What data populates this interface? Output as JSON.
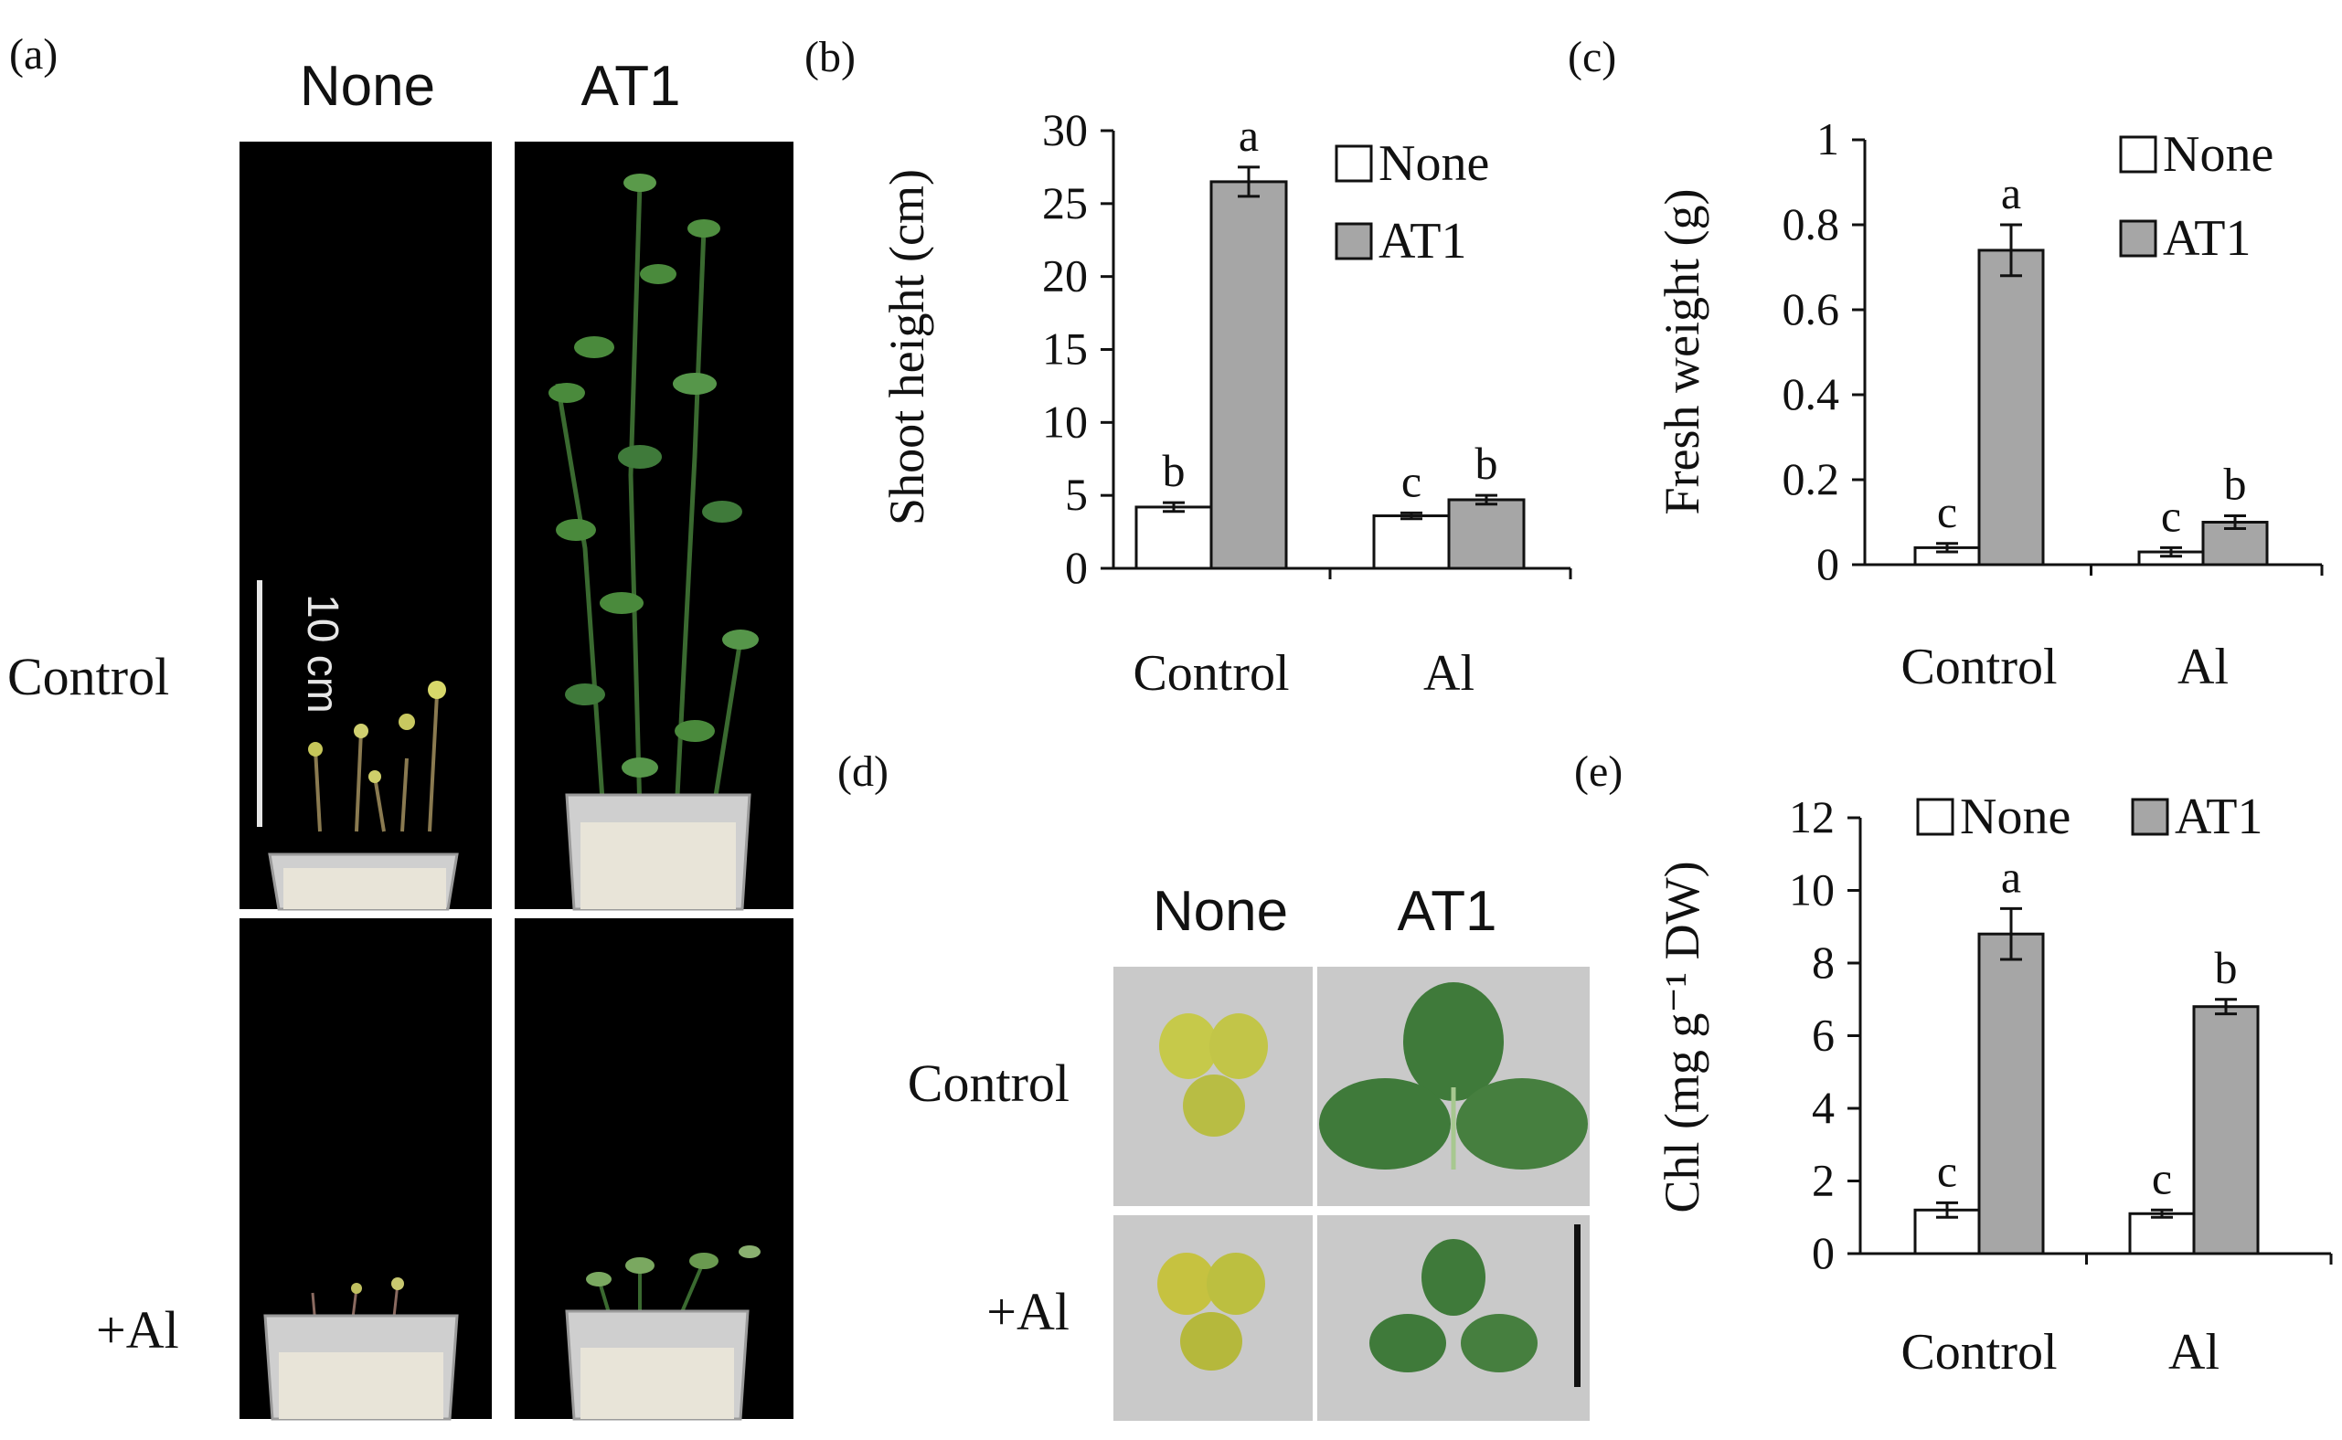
{
  "panel_labels": {
    "a": "(a)",
    "b": "(b)",
    "c": "(c)",
    "d": "(d)",
    "e": "(e)"
  },
  "panel_a": {
    "col_none": "None",
    "col_at1": "AT1",
    "row_control": "Control",
    "row_al": "+Al",
    "scale_label": "10 cm"
  },
  "panel_d": {
    "col_none": "None",
    "col_at1": "AT1",
    "row_control": "Control",
    "row_al": "+Al"
  },
  "colors": {
    "none_fill": "#ffffff",
    "at1_fill": "#a6a6a6",
    "photo_bg": "#000000",
    "leaf_bg": "#c9c9c9",
    "at1_leaf": "#3f7a3a",
    "none_leaf": "#c6c94a"
  },
  "chart_data": [
    {
      "id": "b",
      "type": "bar",
      "categories": [
        "Control",
        "Al"
      ],
      "ylabel": "Shoot height (cm)",
      "ylim": [
        0,
        30
      ],
      "yticks": [
        "0",
        "5",
        "10",
        "15",
        "20",
        "25",
        "30"
      ],
      "legend_position": "top-right",
      "series": [
        {
          "name": "None",
          "values": [
            4.2,
            3.6
          ],
          "errors": [
            0.3,
            0.2
          ],
          "letters": [
            "b",
            "c"
          ]
        },
        {
          "name": "AT1",
          "values": [
            26.5,
            4.7
          ],
          "errors": [
            1.0,
            0.3
          ],
          "letters": [
            "a",
            "b"
          ]
        }
      ]
    },
    {
      "id": "c",
      "type": "bar",
      "categories": [
        "Control",
        "Al"
      ],
      "ylabel": "Fresh weight (g)",
      "ylim": [
        0,
        1
      ],
      "yticks": [
        "0",
        "0.2",
        "0.4",
        "0.6",
        "0.8",
        "1"
      ],
      "legend_position": "top-right",
      "series": [
        {
          "name": "None",
          "values": [
            0.04,
            0.03
          ],
          "errors": [
            0.01,
            0.01
          ],
          "letters": [
            "c",
            "c"
          ]
        },
        {
          "name": "AT1",
          "values": [
            0.74,
            0.1
          ],
          "errors": [
            0.06,
            0.015
          ],
          "letters": [
            "a",
            "b"
          ]
        }
      ]
    },
    {
      "id": "e",
      "type": "bar",
      "categories": [
        "Control",
        "Al"
      ],
      "ylabel": "Chl (mg g⁻¹ DW)",
      "ylim": [
        0,
        12
      ],
      "yticks": [
        "0",
        "2",
        "4",
        "6",
        "8",
        "10",
        "12"
      ],
      "legend_position": "top",
      "series": [
        {
          "name": "None",
          "values": [
            1.2,
            1.1
          ],
          "errors": [
            0.2,
            0.1
          ],
          "letters": [
            "c",
            "c"
          ]
        },
        {
          "name": "AT1",
          "values": [
            8.8,
            6.8
          ],
          "errors": [
            0.7,
            0.2
          ],
          "letters": [
            "a",
            "b"
          ]
        }
      ]
    }
  ]
}
